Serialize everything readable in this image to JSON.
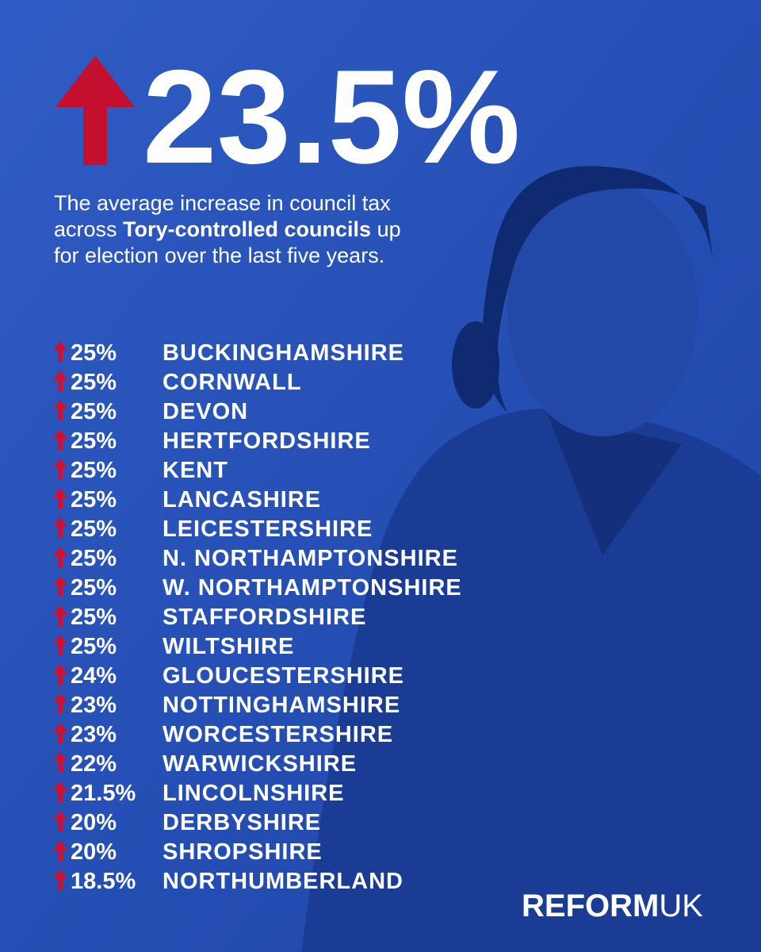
{
  "headline": "23.5%",
  "description": {
    "line1": "The average increase in council tax",
    "line2_before": "across ",
    "line2_bold": "Tory-controlled councils",
    "line2_after": " up",
    "line3": "for election over the last five years."
  },
  "rows": [
    {
      "percent": "25%",
      "council": "BUCKINGHAMSHIRE"
    },
    {
      "percent": "25%",
      "council": "CORNWALL"
    },
    {
      "percent": "25%",
      "council": "DEVON"
    },
    {
      "percent": "25%",
      "council": "HERTFORDSHIRE"
    },
    {
      "percent": "25%",
      "council": "KENT"
    },
    {
      "percent": "25%",
      "council": "LANCASHIRE"
    },
    {
      "percent": "25%",
      "council": "LEICESTERSHIRE"
    },
    {
      "percent": "25%",
      "council": "N. NORTHAMPTONSHIRE"
    },
    {
      "percent": "25%",
      "council": "W. NORTHAMPTONSHIRE"
    },
    {
      "percent": "25%",
      "council": "STAFFORDSHIRE"
    },
    {
      "percent": "25%",
      "council": "WILTSHIRE"
    },
    {
      "percent": "24%",
      "council": "GLOUCESTERSHIRE"
    },
    {
      "percent": "23%",
      "council": "NOTTINGHAMSHIRE"
    },
    {
      "percent": "23%",
      "council": "WORCESTERSHIRE"
    },
    {
      "percent": "22%",
      "council": "WARWICKSHIRE"
    },
    {
      "percent": "21.5%",
      "council": "LINCOLNSHIRE"
    },
    {
      "percent": "20%",
      "council": "DERBYSHIRE"
    },
    {
      "percent": "20%",
      "council": "SHROPSHIRE"
    },
    {
      "percent": "18.5%",
      "council": "NORTHUMBERLAND"
    }
  ],
  "logo": {
    "bold": "REFORM",
    "light": "UK"
  }
}
